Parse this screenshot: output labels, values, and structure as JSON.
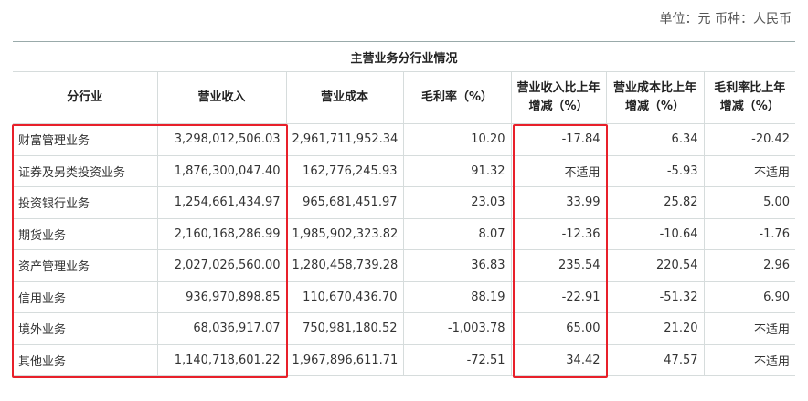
{
  "unit_note": "单位：元 币种：人民币",
  "table": {
    "section_title": "主营业务分行业情况",
    "header": [
      "分行业",
      "营业收入",
      "营业成本",
      "毛利率（%）",
      "营业收入比上年增减（%）",
      "营业成本比上年增减（%）",
      "毛利率比上年增减（%）"
    ],
    "rows": [
      [
        "财富管理业务",
        "3,298,012,506.03",
        "2,961,711,952.34",
        "10.20",
        "-17.84",
        "6.34",
        "-20.42"
      ],
      [
        "证券及另类投资业务",
        "1,876,300,047.40",
        "162,776,245.93",
        "91.32",
        "不适用",
        "-5.93",
        "不适用"
      ],
      [
        "投资银行业务",
        "1,254,661,434.97",
        "965,681,451.97",
        "23.03",
        "33.99",
        "25.82",
        "5.00"
      ],
      [
        "期货业务",
        "2,160,168,286.99",
        "1,985,902,323.82",
        "8.07",
        "-12.36",
        "-10.64",
        "-1.76"
      ],
      [
        "资产管理业务",
        "2,027,026,560.00",
        "1,280,458,739.28",
        "36.83",
        "235.54",
        "220.54",
        "2.96"
      ],
      [
        "信用业务",
        "936,970,898.85",
        "110,670,436.70",
        "88.19",
        "-22.91",
        "-51.32",
        "6.90"
      ],
      [
        "境外业务",
        "68,036,917.07",
        "750,981,180.52",
        "-1,003.78",
        "65.00",
        "21.20",
        "不适用"
      ],
      [
        "其他业务",
        "1,140,718,601.22",
        "1,967,896,611.71",
        "-72.51",
        "34.42",
        "47.57",
        "不适用"
      ]
    ]
  }
}
